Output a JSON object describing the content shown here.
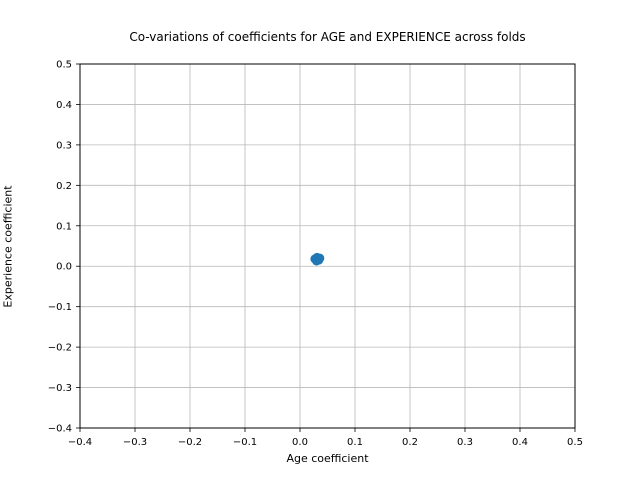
{
  "chart_data": {
    "type": "scatter",
    "title": "Co-variations of coefficients for AGE and EXPERIENCE across folds",
    "xlabel": "Age coefficient",
    "ylabel": "Experience coefficient",
    "xlim": [
      -0.4,
      0.5
    ],
    "ylim": [
      -0.4,
      0.5
    ],
    "xticks": [
      -0.4,
      -0.3,
      -0.2,
      -0.1,
      0.0,
      0.1,
      0.2,
      0.3,
      0.4,
      0.5
    ],
    "yticks": [
      -0.4,
      -0.3,
      -0.2,
      -0.1,
      0.0,
      0.1,
      0.2,
      0.3,
      0.4,
      0.5
    ],
    "grid": true,
    "legend_position": "none",
    "marker_color": "#1f77b4",
    "points": [
      {
        "x": 0.027,
        "y": 0.018
      },
      {
        "x": 0.03,
        "y": 0.013
      },
      {
        "x": 0.031,
        "y": 0.022
      },
      {
        "x": 0.033,
        "y": 0.019
      },
      {
        "x": 0.034,
        "y": 0.015
      },
      {
        "x": 0.036,
        "y": 0.02
      }
    ]
  },
  "style": {
    "grid_color": "#b8b8b8",
    "spine_color": "#000000",
    "background": "#ffffff"
  }
}
